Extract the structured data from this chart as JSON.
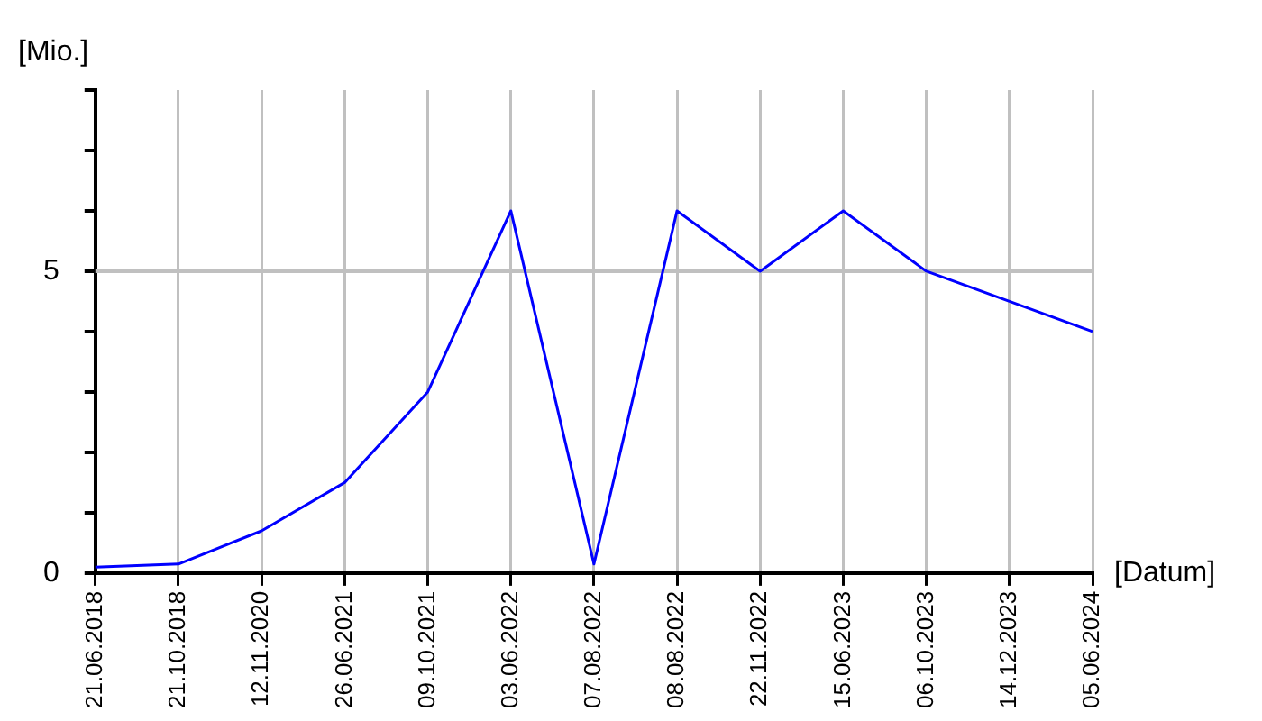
{
  "chart_data": {
    "type": "line",
    "xlabel": "[Datum]",
    "ylabel": "[Mio.]",
    "categories": [
      "21.06.2018",
      "21.10.2018",
      "12.11.2020",
      "26.06.2021",
      "09.10.2021",
      "03.06.2022",
      "07.08.2022",
      "08.08.2022",
      "22.11.2022",
      "15.06.2023",
      "06.10.2023",
      "14.12.2023",
      "05.06.2024"
    ],
    "series": [
      {
        "color": "#0000ff",
        "values": [
          0.1,
          0.15,
          0.7,
          1.5,
          3,
          6,
          0.15,
          6,
          5,
          6,
          5,
          4.5,
          4
        ]
      }
    ],
    "ylim": [
      0,
      8
    ],
    "yticks": [
      0,
      {
        "value": 1,
        "label": null
      },
      {
        "value": 2,
        "label": null
      },
      {
        "value": 3,
        "label": null
      },
      {
        "value": 4,
        "label": null
      },
      5,
      {
        "value": 6,
        "label": null
      },
      {
        "value": 7,
        "label": null
      },
      {
        "value": 8,
        "label": null
      }
    ],
    "grid": "x",
    "ref_lines": [
      {
        "axis": "y",
        "value": 5,
        "color": "#c0c0c0"
      }
    ],
    "legend": false,
    "marker": "none",
    "line_style": "solid"
  }
}
